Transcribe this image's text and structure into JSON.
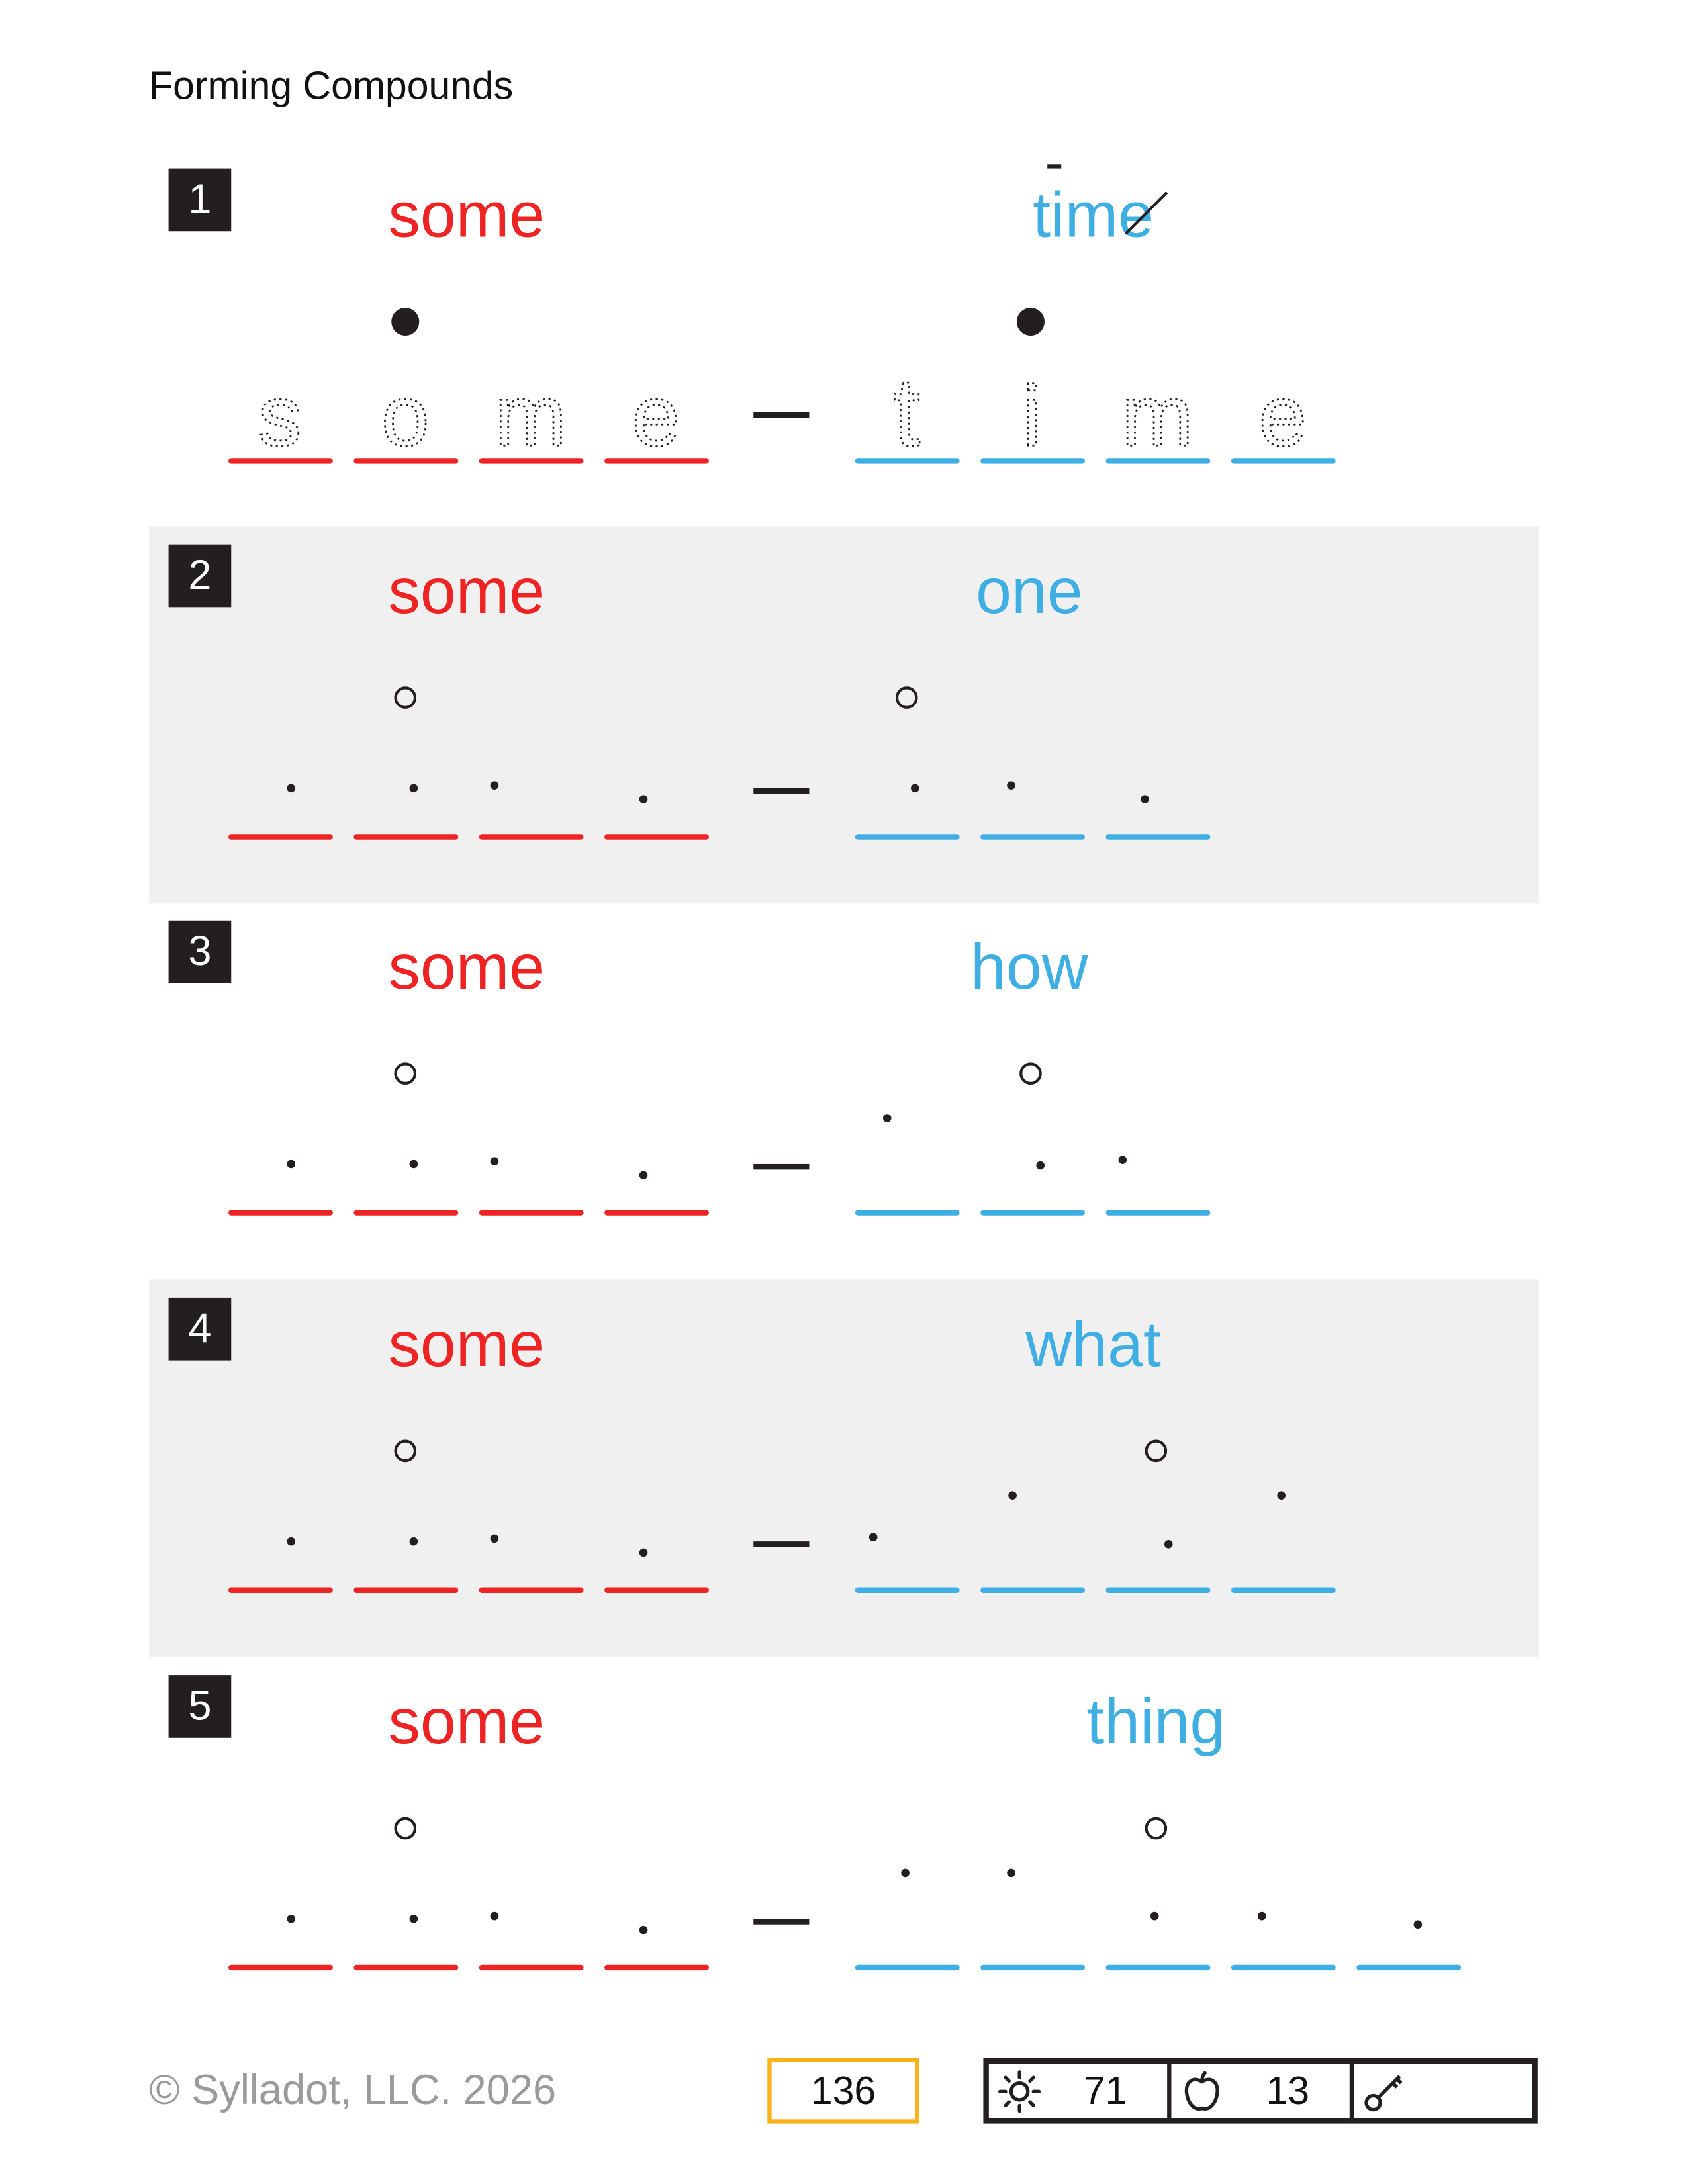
{
  "title": "Forming Compounds",
  "colors": {
    "first_word": "#ee2424",
    "second_word": "#3faee3",
    "page_box": "#fbb11a",
    "ink": "#231f20"
  },
  "sections": [
    {
      "number": "1",
      "left_word": "some",
      "right_word": "time",
      "syllable_mark": "filled",
      "traced_left": [
        "s",
        "o",
        "m",
        "e"
      ],
      "traced_right": [
        "t",
        "i",
        "m",
        "e"
      ],
      "silent_e": true
    },
    {
      "number": "2",
      "left_word": "some",
      "right_word": "one",
      "syllable_mark": "open"
    },
    {
      "number": "3",
      "left_word": "some",
      "right_word": "how",
      "syllable_mark": "open"
    },
    {
      "number": "4",
      "left_word": "some",
      "right_word": "what",
      "syllable_mark": "open"
    },
    {
      "number": "5",
      "left_word": "some",
      "right_word": "thing",
      "syllable_mark": "open"
    }
  ],
  "footer": {
    "copyright": "© Sylladot, LLC.  2026",
    "page_number": "136",
    "sun_count": "71",
    "apple_count": "13",
    "key_count": "",
    "icons": [
      "sun-icon",
      "apple-icon",
      "key-icon"
    ]
  }
}
